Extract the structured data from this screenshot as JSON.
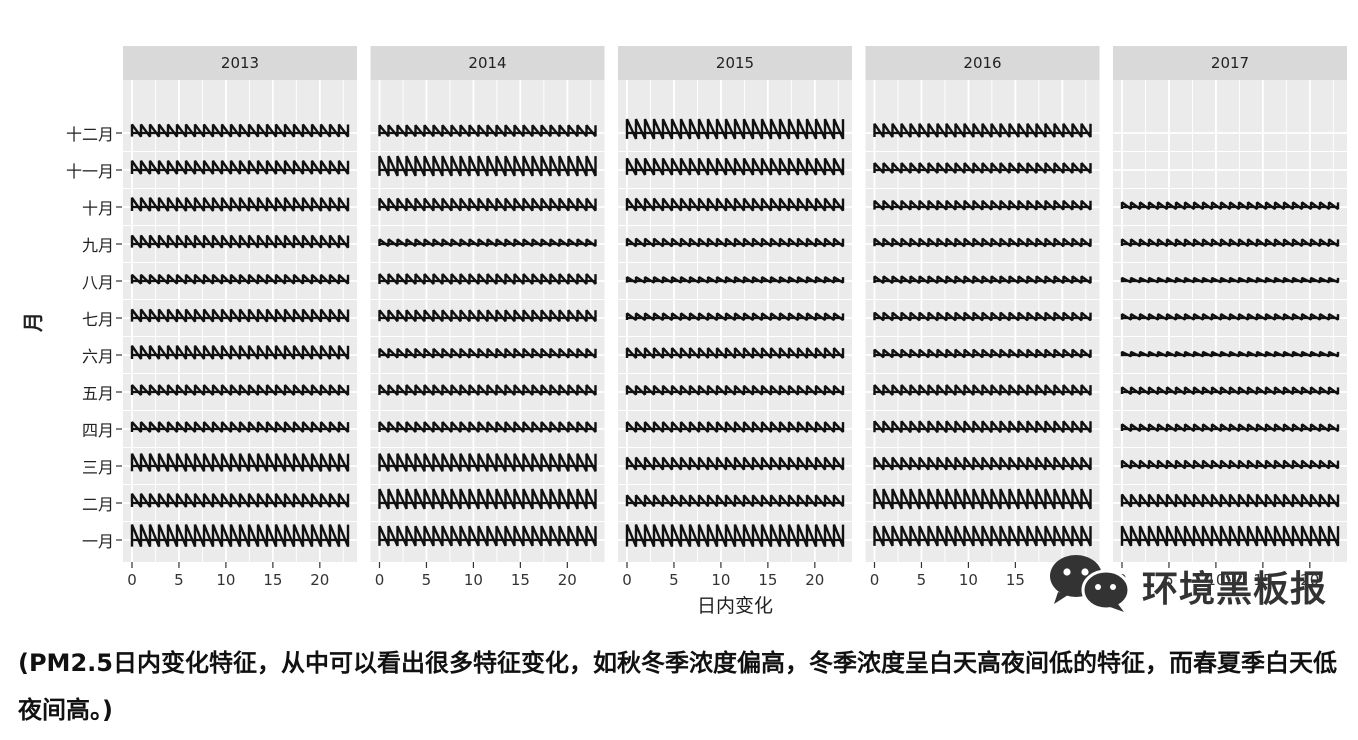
{
  "chart_data": {
    "type": "line",
    "title": "",
    "xlabel": "日内变化",
    "ylabel": "月",
    "panels": [
      "2013",
      "2014",
      "2015",
      "2016",
      "2017"
    ],
    "months": [
      "一月",
      "二月",
      "三月",
      "四月",
      "五月",
      "六月",
      "七月",
      "八月",
      "九月",
      "十月",
      "十一月",
      "十二月"
    ],
    "x_ticks": [
      "0",
      "5",
      "10",
      "15",
      "20"
    ],
    "xlim": [
      0,
      23
    ],
    "rows_per_panel": [
      [
        1.0,
        0.6,
        0.8,
        0.45,
        0.45,
        0.6,
        0.55,
        0.4,
        0.55,
        0.6,
        0.6,
        0.55
      ],
      [
        0.9,
        0.9,
        0.8,
        0.45,
        0.45,
        0.4,
        0.5,
        0.45,
        0.3,
        0.55,
        0.9,
        0.5
      ],
      [
        1.0,
        0.5,
        0.55,
        0.45,
        0.4,
        0.45,
        0.3,
        0.25,
        0.35,
        0.55,
        0.75,
        0.9
      ],
      [
        0.9,
        0.9,
        0.55,
        0.5,
        0.45,
        0.35,
        0.35,
        0.3,
        0.35,
        0.4,
        0.45,
        0.6
      ],
      [
        0.9,
        0.55,
        0.35,
        0.3,
        0.3,
        0.2,
        0.25,
        0.2,
        0.3,
        0.3,
        0,
        0
      ]
    ]
  },
  "caption": "(PM2.5日内变化特征，从中可以看出很多特征变化，如秋冬季浓度偏高，冬季浓度呈白天高夜间低的特征，而春夏季白天低夜间高。)",
  "watermark": {
    "text": "环境黑板报",
    "icon": "wechat-icon"
  }
}
